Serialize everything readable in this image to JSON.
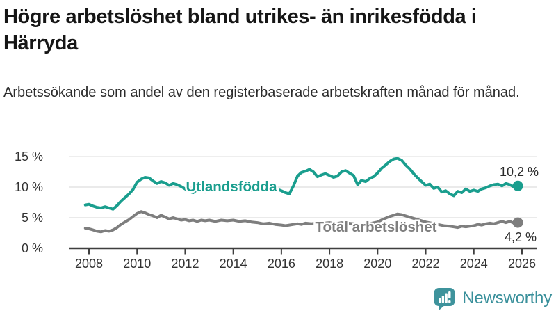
{
  "header": {
    "title": "Högre arbetslöshet bland utrikes- än inrikesfödda i Härryda",
    "subtitle": "Arbetssökande som andel av den registerbaserade arbetskraften månad för månad."
  },
  "chart_data": {
    "type": "line",
    "title": "Högre arbetslöshet bland utrikes- än inrikesfödda i Härryda",
    "subtitle": "Arbetssökande som andel av den registerbaserade arbetskraften månad för månad.",
    "xlabel": "",
    "ylabel": "",
    "grid": true,
    "legend_position": "inline-labels",
    "xlim": [
      2007.8,
      2026.6
    ],
    "ylim": [
      0,
      16.5
    ],
    "x_axis": {
      "ticks": [
        {
          "value": 2008,
          "label": "2008"
        },
        {
          "value": 2010,
          "label": "2010"
        },
        {
          "value": 2012,
          "label": "2012"
        },
        {
          "value": 2014,
          "label": "2014"
        },
        {
          "value": 2016,
          "label": "2016"
        },
        {
          "value": 2018,
          "label": "2018"
        },
        {
          "value": 2020,
          "label": "2020"
        },
        {
          "value": 2022,
          "label": "2022"
        },
        {
          "value": 2024,
          "label": "2024"
        },
        {
          "value": 2026,
          "label": "2026"
        }
      ]
    },
    "y_axis": {
      "ticks": [
        {
          "value": 0,
          "label": "0 %"
        },
        {
          "value": 5,
          "label": "5 %"
        },
        {
          "value": 10,
          "label": "10 %"
        },
        {
          "value": 15,
          "label": "15 %"
        }
      ]
    },
    "series": [
      {
        "name": "Utlandsfödda",
        "color": "#1a9e8e",
        "end_label": "10,2 %",
        "end_value": 10.2,
        "points": [
          [
            2007.85,
            7.1
          ],
          [
            2008.0,
            7.2
          ],
          [
            2008.17,
            6.9
          ],
          [
            2008.33,
            6.7
          ],
          [
            2008.5,
            6.6
          ],
          [
            2008.67,
            6.8
          ],
          [
            2008.83,
            6.6
          ],
          [
            2009.0,
            6.4
          ],
          [
            2009.17,
            7.0
          ],
          [
            2009.33,
            7.7
          ],
          [
            2009.5,
            8.3
          ],
          [
            2009.67,
            8.9
          ],
          [
            2009.83,
            9.6
          ],
          [
            2010.0,
            10.8
          ],
          [
            2010.17,
            11.3
          ],
          [
            2010.33,
            11.6
          ],
          [
            2010.5,
            11.5
          ],
          [
            2010.67,
            11.0
          ],
          [
            2010.83,
            10.6
          ],
          [
            2011.0,
            10.9
          ],
          [
            2011.17,
            10.7
          ],
          [
            2011.33,
            10.3
          ],
          [
            2011.5,
            10.6
          ],
          [
            2011.67,
            10.4
          ],
          [
            2011.83,
            10.1
          ],
          [
            2012.0,
            9.7
          ],
          [
            2012.17,
            9.3
          ],
          [
            2012.33,
            9.1
          ],
          [
            2012.5,
            9.6
          ],
          [
            2012.67,
            9.4
          ],
          [
            2012.83,
            9.2
          ],
          [
            2013.0,
            9.5
          ],
          [
            2013.25,
            9.3
          ],
          [
            2013.5,
            9.6
          ],
          [
            2013.75,
            9.4
          ],
          [
            2014.0,
            9.6
          ],
          [
            2014.25,
            9.4
          ],
          [
            2014.5,
            9.7
          ],
          [
            2014.75,
            9.5
          ],
          [
            2015.0,
            9.6
          ],
          [
            2015.25,
            9.4
          ],
          [
            2015.5,
            9.7
          ],
          [
            2015.75,
            9.8
          ],
          [
            2016.0,
            9.4
          ],
          [
            2016.17,
            9.1
          ],
          [
            2016.33,
            8.9
          ],
          [
            2016.5,
            10.2
          ],
          [
            2016.67,
            11.8
          ],
          [
            2016.83,
            12.4
          ],
          [
            2017.0,
            12.6
          ],
          [
            2017.17,
            12.9
          ],
          [
            2017.33,
            12.5
          ],
          [
            2017.5,
            11.7
          ],
          [
            2017.67,
            12.0
          ],
          [
            2017.83,
            12.2
          ],
          [
            2018.0,
            11.9
          ],
          [
            2018.17,
            11.6
          ],
          [
            2018.33,
            11.8
          ],
          [
            2018.5,
            12.5
          ],
          [
            2018.67,
            12.7
          ],
          [
            2018.83,
            12.3
          ],
          [
            2019.0,
            11.9
          ],
          [
            2019.17,
            10.4
          ],
          [
            2019.33,
            11.1
          ],
          [
            2019.5,
            10.9
          ],
          [
            2019.67,
            11.4
          ],
          [
            2019.83,
            11.7
          ],
          [
            2020.0,
            12.3
          ],
          [
            2020.17,
            13.1
          ],
          [
            2020.33,
            13.6
          ],
          [
            2020.5,
            14.2
          ],
          [
            2020.67,
            14.6
          ],
          [
            2020.83,
            14.7
          ],
          [
            2021.0,
            14.4
          ],
          [
            2021.17,
            13.6
          ],
          [
            2021.33,
            13.0
          ],
          [
            2021.5,
            12.2
          ],
          [
            2021.67,
            11.5
          ],
          [
            2021.83,
            10.9
          ],
          [
            2022.0,
            10.3
          ],
          [
            2022.17,
            10.5
          ],
          [
            2022.33,
            9.8
          ],
          [
            2022.5,
            10.0
          ],
          [
            2022.67,
            9.2
          ],
          [
            2022.83,
            9.4
          ],
          [
            2023.0,
            8.9
          ],
          [
            2023.17,
            8.6
          ],
          [
            2023.33,
            9.3
          ],
          [
            2023.5,
            9.1
          ],
          [
            2023.67,
            9.7
          ],
          [
            2023.83,
            9.3
          ],
          [
            2024.0,
            9.5
          ],
          [
            2024.17,
            9.3
          ],
          [
            2024.33,
            9.7
          ],
          [
            2024.5,
            9.9
          ],
          [
            2024.67,
            10.2
          ],
          [
            2024.83,
            10.4
          ],
          [
            2025.0,
            10.5
          ],
          [
            2025.17,
            10.2
          ],
          [
            2025.33,
            10.6
          ],
          [
            2025.5,
            10.4
          ],
          [
            2025.67,
            10.0
          ],
          [
            2025.83,
            10.2
          ]
        ]
      },
      {
        "name": "Total arbetslöshet",
        "color": "#7e7e7e",
        "end_label": "4,2 %",
        "end_value": 4.2,
        "points": [
          [
            2007.85,
            3.3
          ],
          [
            2008.0,
            3.2
          ],
          [
            2008.17,
            3.0
          ],
          [
            2008.33,
            2.8
          ],
          [
            2008.5,
            2.7
          ],
          [
            2008.67,
            2.9
          ],
          [
            2008.83,
            2.8
          ],
          [
            2009.0,
            3.0
          ],
          [
            2009.17,
            3.4
          ],
          [
            2009.33,
            3.9
          ],
          [
            2009.5,
            4.3
          ],
          [
            2009.67,
            4.7
          ],
          [
            2009.83,
            5.2
          ],
          [
            2010.0,
            5.7
          ],
          [
            2010.17,
            6.0
          ],
          [
            2010.33,
            5.8
          ],
          [
            2010.5,
            5.5
          ],
          [
            2010.67,
            5.3
          ],
          [
            2010.83,
            5.0
          ],
          [
            2011.0,
            5.4
          ],
          [
            2011.17,
            5.1
          ],
          [
            2011.33,
            4.8
          ],
          [
            2011.5,
            5.0
          ],
          [
            2011.67,
            4.8
          ],
          [
            2011.83,
            4.6
          ],
          [
            2012.0,
            4.7
          ],
          [
            2012.17,
            4.5
          ],
          [
            2012.33,
            4.6
          ],
          [
            2012.5,
            4.4
          ],
          [
            2012.67,
            4.6
          ],
          [
            2012.83,
            4.5
          ],
          [
            2013.0,
            4.6
          ],
          [
            2013.25,
            4.4
          ],
          [
            2013.5,
            4.6
          ],
          [
            2013.75,
            4.5
          ],
          [
            2014.0,
            4.6
          ],
          [
            2014.25,
            4.4
          ],
          [
            2014.5,
            4.5
          ],
          [
            2014.75,
            4.3
          ],
          [
            2015.0,
            4.2
          ],
          [
            2015.25,
            4.0
          ],
          [
            2015.5,
            4.1
          ],
          [
            2015.75,
            3.9
          ],
          [
            2016.0,
            3.8
          ],
          [
            2016.17,
            3.7
          ],
          [
            2016.33,
            3.8
          ],
          [
            2016.5,
            3.9
          ],
          [
            2016.67,
            4.0
          ],
          [
            2016.83,
            3.9
          ],
          [
            2017.0,
            4.1
          ],
          [
            2017.25,
            4.0
          ],
          [
            2017.5,
            4.2
          ],
          [
            2017.75,
            4.1
          ],
          [
            2018.0,
            4.2
          ],
          [
            2018.25,
            4.0
          ],
          [
            2018.5,
            4.2
          ],
          [
            2018.75,
            4.1
          ],
          [
            2019.0,
            4.0
          ],
          [
            2019.25,
            3.8
          ],
          [
            2019.5,
            3.9
          ],
          [
            2019.75,
            4.1
          ],
          [
            2020.0,
            4.3
          ],
          [
            2020.25,
            4.8
          ],
          [
            2020.5,
            5.2
          ],
          [
            2020.67,
            5.4
          ],
          [
            2020.83,
            5.6
          ],
          [
            2021.0,
            5.5
          ],
          [
            2021.25,
            5.2
          ],
          [
            2021.5,
            4.9
          ],
          [
            2021.75,
            4.6
          ],
          [
            2022.0,
            4.3
          ],
          [
            2022.25,
            4.1
          ],
          [
            2022.5,
            3.9
          ],
          [
            2022.75,
            3.7
          ],
          [
            2023.0,
            3.6
          ],
          [
            2023.17,
            3.5
          ],
          [
            2023.33,
            3.4
          ],
          [
            2023.5,
            3.6
          ],
          [
            2023.67,
            3.5
          ],
          [
            2023.83,
            3.6
          ],
          [
            2024.0,
            3.7
          ],
          [
            2024.17,
            3.9
          ],
          [
            2024.33,
            3.8
          ],
          [
            2024.5,
            4.0
          ],
          [
            2024.67,
            4.1
          ],
          [
            2024.83,
            4.0
          ],
          [
            2025.0,
            4.2
          ],
          [
            2025.17,
            4.4
          ],
          [
            2025.33,
            4.2
          ],
          [
            2025.5,
            4.4
          ],
          [
            2025.67,
            4.1
          ],
          [
            2025.83,
            4.2
          ]
        ]
      }
    ]
  },
  "footer": {
    "brand": "Newsworthy",
    "brand_color": "#3a909b",
    "logo_icon": "bar-chart-speech-bubble-icon"
  }
}
